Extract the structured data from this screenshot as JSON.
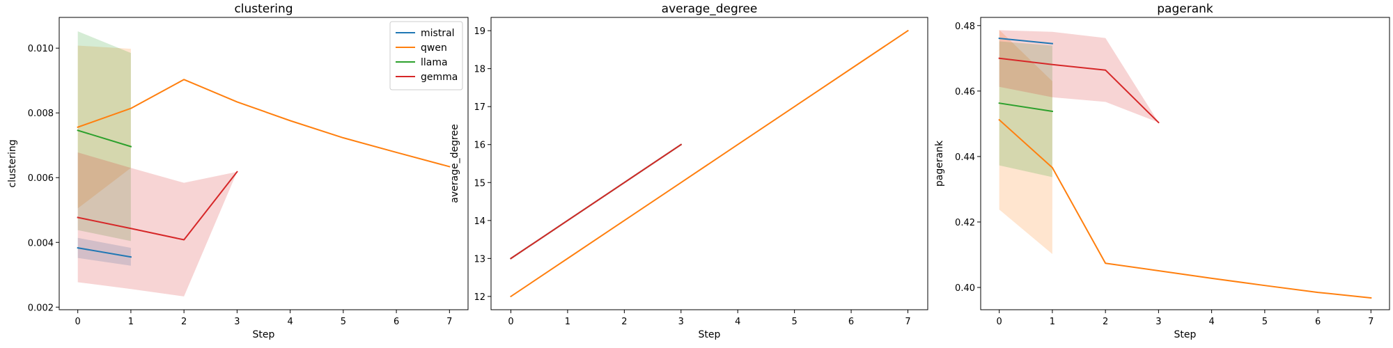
{
  "colors": {
    "mistral": "#1f77b4",
    "qwen": "#ff7f0e",
    "llama": "#2ca02c",
    "gemma": "#d62728"
  },
  "legend": {
    "placement": "top-right",
    "panel": 0,
    "entries": [
      "mistral",
      "qwen",
      "llama",
      "gemma"
    ]
  },
  "chart_data": [
    {
      "type": "line",
      "title": "clustering",
      "xlabel": "Step",
      "ylabel": "clustering",
      "xlim": [
        -0.35,
        7.35
      ],
      "ylim": [
        0.00192,
        0.01095
      ],
      "xticks": [
        0,
        1,
        2,
        3,
        4,
        5,
        6,
        7
      ],
      "yticks": [
        0.002,
        0.004,
        0.006,
        0.008,
        0.01
      ],
      "ytick_labels": [
        "0.002",
        "0.004",
        "0.006",
        "0.008",
        "0.010"
      ],
      "grid": false,
      "series": [
        {
          "name": "mistral",
          "x": [
            0,
            1
          ],
          "y": [
            0.00383,
            0.00355
          ],
          "lower": [
            0.00352,
            0.00328
          ],
          "upper": [
            0.00414,
            0.00383
          ]
        },
        {
          "name": "qwen",
          "x": [
            0,
            1,
            2,
            3,
            4,
            5,
            6,
            7
          ],
          "y": [
            0.00756,
            0.00814,
            0.00903,
            0.00834,
            0.00776,
            0.00723,
            0.00678,
            0.00634
          ],
          "lower": [
            0.00505,
            0.0063,
            null,
            null,
            null,
            null,
            null,
            null
          ],
          "upper": [
            0.01008,
            0.00998,
            null,
            null,
            null,
            null,
            null,
            null
          ]
        },
        {
          "name": "llama",
          "x": [
            0,
            1
          ],
          "y": [
            0.00746,
            0.00696
          ],
          "lower": [
            0.00438,
            0.00404
          ],
          "upper": [
            0.01052,
            0.00985
          ]
        },
        {
          "name": "gemma",
          "x": [
            0,
            1,
            2,
            3
          ],
          "y": [
            0.00477,
            0.00443,
            0.00408,
            0.00618
          ],
          "lower": [
            0.00277,
            0.00256,
            0.00233,
            0.00618
          ],
          "upper": [
            0.00678,
            0.0063,
            0.00584,
            0.00618
          ]
        }
      ]
    },
    {
      "type": "line",
      "title": "average_degree",
      "xlabel": "Step",
      "ylabel": "average_degree",
      "xlim": [
        -0.35,
        7.35
      ],
      "ylim": [
        11.65,
        19.35
      ],
      "xticks": [
        0,
        1,
        2,
        3,
        4,
        5,
        6,
        7
      ],
      "yticks": [
        12,
        13,
        14,
        15,
        16,
        17,
        18,
        19
      ],
      "ytick_labels": [
        "12",
        "13",
        "14",
        "15",
        "16",
        "17",
        "18",
        "19"
      ],
      "grid": false,
      "series": [
        {
          "name": "mistral",
          "x": [
            0,
            1,
            2,
            3
          ],
          "y": [
            13,
            14,
            15,
            16
          ]
        },
        {
          "name": "qwen",
          "x": [
            0,
            1,
            2,
            3,
            4,
            5,
            6,
            7
          ],
          "y": [
            12,
            13,
            14,
            15,
            16,
            17,
            18,
            19
          ]
        },
        {
          "name": "llama",
          "x": [
            0,
            1,
            2,
            3
          ],
          "y": [
            13,
            14,
            15,
            16
          ]
        },
        {
          "name": "gemma",
          "x": [
            0,
            1,
            2,
            3
          ],
          "y": [
            13,
            14,
            15,
            16
          ]
        }
      ]
    },
    {
      "type": "line",
      "title": "pagerank",
      "xlabel": "Step",
      "ylabel": "pagerank",
      "xlim": [
        -0.35,
        7.35
      ],
      "ylim": [
        0.3932,
        0.4825
      ],
      "xticks": [
        0,
        1,
        2,
        3,
        4,
        5,
        6,
        7
      ],
      "yticks": [
        0.4,
        0.42,
        0.44,
        0.46,
        0.48
      ],
      "ytick_labels": [
        "0.40",
        "0.42",
        "0.44",
        "0.46",
        "0.48"
      ],
      "grid": false,
      "series": [
        {
          "name": "mistral",
          "x": [
            0,
            1
          ],
          "y": [
            0.4761,
            0.4745
          ]
        },
        {
          "name": "qwen",
          "x": [
            0,
            1,
            2,
            3,
            4,
            5,
            6,
            7
          ],
          "y": [
            0.4512,
            0.4366,
            0.4074,
            0.4051,
            0.4028,
            0.4006,
            0.3985,
            0.3968
          ],
          "lower": [
            0.4238,
            0.4102,
            null,
            null,
            null,
            null,
            null,
            null
          ],
          "upper": [
            0.4787,
            0.463,
            null,
            null,
            null,
            null,
            null,
            null
          ]
        },
        {
          "name": "llama",
          "x": [
            0,
            1
          ],
          "y": [
            0.4563,
            0.4538
          ],
          "lower": [
            0.4373,
            0.4337
          ],
          "upper": [
            0.4752,
            0.4739
          ]
        },
        {
          "name": "gemma",
          "x": [
            0,
            1,
            2,
            3
          ],
          "y": [
            0.47,
            0.4681,
            0.4664,
            0.4504
          ],
          "lower": [
            0.4613,
            0.4581,
            0.4567,
            0.4504
          ],
          "upper": [
            0.4786,
            0.4781,
            0.4762,
            0.4504
          ]
        }
      ]
    }
  ]
}
